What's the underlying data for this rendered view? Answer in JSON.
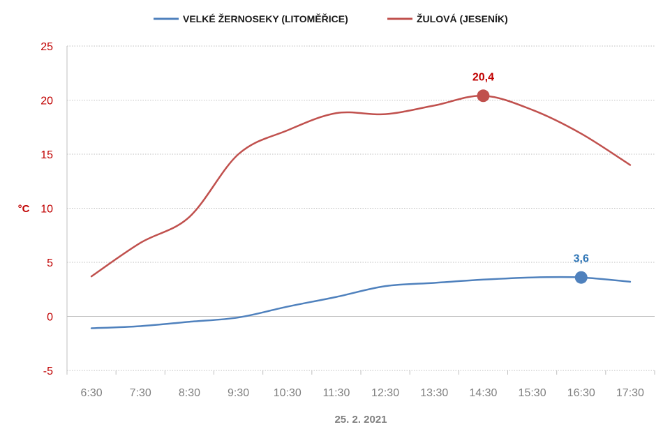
{
  "chart_data": {
    "type": "line",
    "categories": [
      "6:30",
      "7:30",
      "8:30",
      "9:30",
      "10:30",
      "11:30",
      "12:30",
      "13:30",
      "14:30",
      "15:30",
      "16:30",
      "17:30"
    ],
    "series": [
      {
        "name": "VELKÉ ŽERNOSEKY (LITOMĚŘICE)",
        "color": "#4f81bd",
        "values": [
          -1.1,
          -0.9,
          -0.5,
          -0.1,
          0.9,
          1.8,
          2.8,
          3.1,
          3.4,
          3.6,
          3.6,
          3.2
        ],
        "highlight": {
          "index": 10,
          "label": "3,6"
        }
      },
      {
        "name": "ŽULOVÁ (JESENÍK)",
        "color": "#c0504d",
        "values": [
          3.7,
          6.8,
          9.2,
          15.0,
          17.2,
          18.8,
          18.7,
          19.5,
          20.4,
          19.1,
          16.9,
          14.0
        ],
        "highlight": {
          "index": 8,
          "label": "20,4"
        }
      }
    ],
    "ylim": [
      -5,
      25
    ],
    "yticks": [
      "-5",
      "0",
      "5",
      "10",
      "15",
      "20",
      "25"
    ],
    "ylabel": "°C",
    "xlabel": "25. 2. 2021",
    "grid": true,
    "legend_position": "top",
    "colors": {
      "tick_y": "#c00000",
      "tick_x": "#7f7f7f",
      "annot_blue": "#2e75b6",
      "annot_red": "#c00000"
    }
  }
}
